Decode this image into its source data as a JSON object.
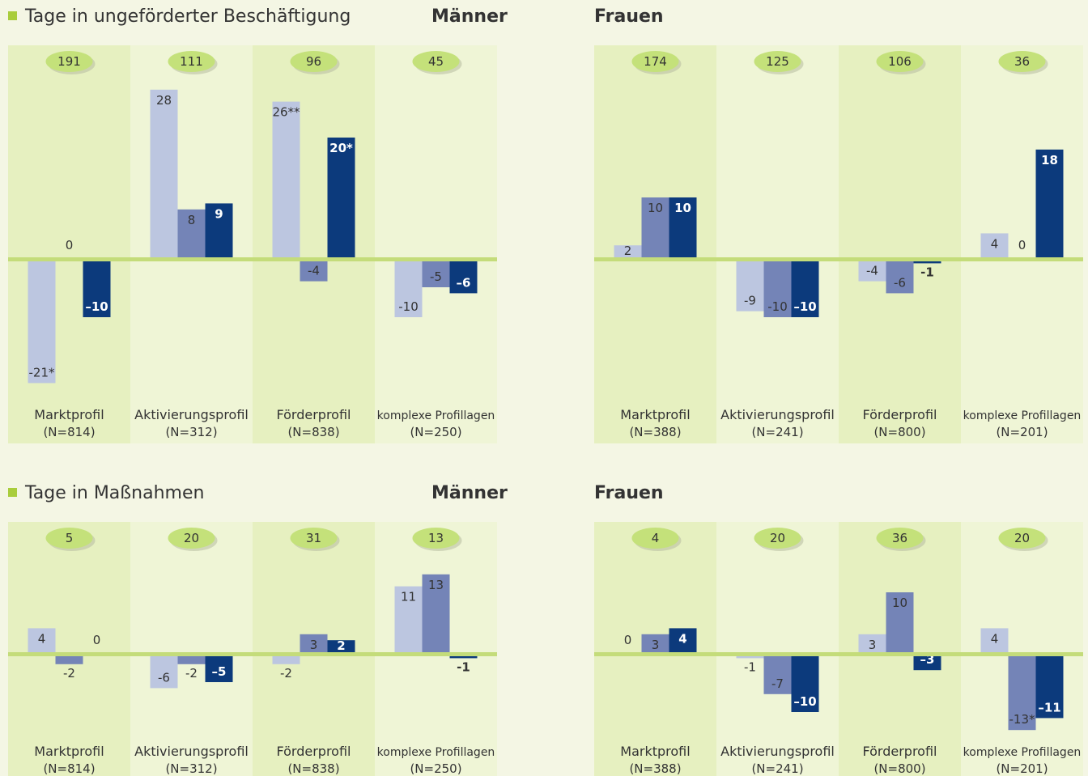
{
  "sections": [
    {
      "title": "Tage in ungeförderter Beschäftigung"
    },
    {
      "title": "Tage in Maßnahmen"
    }
  ],
  "colors": {
    "light": "#bcc6e0",
    "mid": "#7484b7",
    "dark": "#0c3a7c",
    "baseline": "#c4dc7a",
    "oval": "#c4e17a",
    "col_a": "#e6f0c0",
    "col_b": "#eff5d6"
  },
  "chart_data": [
    {
      "type": "bar",
      "panel": "Männer",
      "section": "Tage in ungeförderter Beschäftigung",
      "ylim": [
        -22,
        30
      ],
      "categories": [
        {
          "label": "Marktprofil",
          "n": "(N=814)",
          "total": "191",
          "values": [
            -21,
            null,
            -10
          ],
          "labels": [
            "-21*",
            "0",
            "–10"
          ]
        },
        {
          "label": "Aktivierungsprofil",
          "n": "(N=312)",
          "total": "111",
          "values": [
            28,
            8,
            9
          ],
          "labels": [
            "28",
            "8",
            "9"
          ]
        },
        {
          "label": "Förderprofil",
          "n": "(N=838)",
          "total": "96",
          "values": [
            26,
            -4,
            20
          ],
          "labels": [
            "26**",
            "-4",
            "20*"
          ]
        },
        {
          "label": "komplexe Profillagen",
          "n": "(N=250)",
          "total": "45",
          "values": [
            -10,
            -5,
            -6
          ],
          "labels": [
            "-10",
            "-5",
            "–6"
          ]
        }
      ]
    },
    {
      "type": "bar",
      "panel": "Frauen",
      "section": "Tage in ungeförderter Beschäftigung",
      "ylim": [
        -22,
        30
      ],
      "categories": [
        {
          "label": "Marktprofil",
          "n": "(N=388)",
          "total": "174",
          "values": [
            2,
            10,
            10
          ],
          "labels": [
            "2",
            "10",
            "10"
          ]
        },
        {
          "label": "Aktivierungsprofil",
          "n": "(N=241)",
          "total": "125",
          "values": [
            -9,
            -10,
            -10
          ],
          "labels": [
            "-9",
            "-10",
            "–10"
          ]
        },
        {
          "label": "Förderprofil",
          "n": "(N=800)",
          "total": "106",
          "values": [
            -4,
            -6,
            -1
          ],
          "labels": [
            "-4",
            "-6",
            "-1"
          ]
        },
        {
          "label": "komplexe Profillagen",
          "n": "(N=201)",
          "total": "36",
          "values": [
            4,
            null,
            18
          ],
          "labels": [
            "4",
            "0",
            "18"
          ]
        }
      ]
    },
    {
      "type": "bar",
      "panel": "Männer",
      "section": "Tage in Maßnahmen",
      "ylim": [
        -14,
        15
      ],
      "categories": [
        {
          "label": "Marktprofil",
          "n": "(N=814)",
          "total": "5",
          "values": [
            4,
            -2,
            null
          ],
          "labels": [
            "4",
            "-2",
            "0"
          ]
        },
        {
          "label": "Aktivierungsprofil",
          "n": "(N=312)",
          "total": "20",
          "values": [
            -6,
            -2,
            -5
          ],
          "labels": [
            "-6",
            "-2",
            "–5"
          ]
        },
        {
          "label": "Förderprofil",
          "n": "(N=838)",
          "total": "31",
          "values": [
            -2,
            3,
            2
          ],
          "labels": [
            "-2",
            "3",
            "2"
          ]
        },
        {
          "label": "komplexe Profillagen",
          "n": "(N=250)",
          "total": "13",
          "values": [
            11,
            13,
            -1
          ],
          "labels": [
            "11",
            "13",
            "-1"
          ]
        }
      ]
    },
    {
      "type": "bar",
      "panel": "Frauen",
      "section": "Tage in Maßnahmen",
      "ylim": [
        -14,
        15
      ],
      "categories": [
        {
          "label": "Marktprofil",
          "n": "(N=388)",
          "total": "4",
          "values": [
            null,
            3,
            4
          ],
          "labels": [
            "0",
            "3",
            "4"
          ]
        },
        {
          "label": "Aktivierungsprofil",
          "n": "(N=241)",
          "total": "20",
          "values": [
            -1,
            -7,
            -10
          ],
          "labels": [
            "-1",
            "-7",
            "–10"
          ]
        },
        {
          "label": "Förderprofil",
          "n": "(N=800)",
          "total": "36",
          "values": [
            3,
            10,
            -3
          ],
          "labels": [
            "3",
            "10",
            "–3"
          ]
        },
        {
          "label": "komplexe Profillagen",
          "n": "(N=201)",
          "total": "20",
          "values": [
            4,
            -13,
            -11
          ],
          "labels": [
            "4",
            "-13*",
            "–11"
          ]
        }
      ]
    }
  ]
}
